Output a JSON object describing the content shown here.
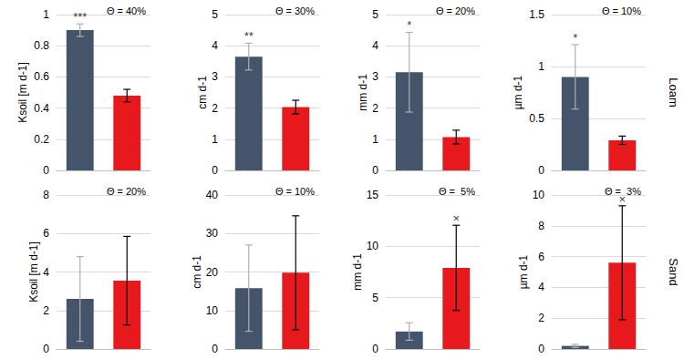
{
  "chart_data": [
    {
      "type": "bar",
      "title": "Θ = 40%",
      "ylabel": "Ksoil [m d-1]",
      "categories": [
        null,
        null
      ],
      "values": [
        0.9,
        0.48
      ],
      "errors": [
        0.04,
        0.04
      ],
      "colors": [
        "#44546a",
        "#e8191c"
      ],
      "annotations": [
        "***",
        null
      ],
      "ylim": [
        0,
        1
      ],
      "yticks": [
        0,
        0.2,
        0.4,
        0.6,
        0.8,
        1
      ],
      "grid": true,
      "tick_labels": "y"
    },
    {
      "type": "bar",
      "title": "Θ = 30%",
      "ylabel": "cm d-1",
      "categories": [
        null,
        null
      ],
      "values": [
        3.65,
        2.03
      ],
      "errors": [
        0.43,
        0.22
      ],
      "colors": [
        "#44546a",
        "#e8191c"
      ],
      "annotations": [
        "**",
        null
      ],
      "ylim": [
        0,
        5
      ],
      "yticks": [
        0,
        1,
        2,
        3,
        4,
        5
      ],
      "grid": true,
      "tick_labels": "y"
    },
    {
      "type": "bar",
      "title": "Θ = 20%",
      "ylabel": "mm d-1",
      "categories": [
        null,
        null
      ],
      "values": [
        3.15,
        1.07
      ],
      "errors": [
        1.28,
        0.22
      ],
      "colors": [
        "#44546a",
        "#e8191c"
      ],
      "annotations": [
        "*",
        null
      ],
      "ylim": [
        0,
        5
      ],
      "yticks": [
        0,
        1,
        2,
        3,
        4,
        5
      ],
      "grid": true,
      "tick_labels": "y"
    },
    {
      "type": "bar",
      "title": "Θ = 10%",
      "ylabel": "µm d-1",
      "side_label": "Loam",
      "categories": [
        null,
        null
      ],
      "values": [
        0.9,
        0.29
      ],
      "errors": [
        0.31,
        0.04
      ],
      "colors": [
        "#44546a",
        "#e8191c"
      ],
      "annotations": [
        "*",
        null
      ],
      "ylim": [
        0,
        1.5
      ],
      "yticks": [
        0,
        0.5,
        1,
        1.5
      ],
      "grid": true,
      "tick_labels": "y"
    },
    {
      "type": "bar",
      "title": "Θ = 20%",
      "ylabel": "Ksoil [m d-1]",
      "categories": [
        null,
        null
      ],
      "values": [
        2.6,
        3.55
      ],
      "errors": [
        2.2,
        2.3
      ],
      "colors": [
        "#44546a",
        "#e8191c"
      ],
      "annotations": [
        null,
        null
      ],
      "ylim": [
        0,
        8
      ],
      "yticks": [
        0,
        2,
        4,
        6,
        8
      ],
      "grid": true,
      "tick_labels": "y"
    },
    {
      "type": "bar",
      "title": "Θ = 10%",
      "ylabel": "cm d-1",
      "categories": [
        null,
        null
      ],
      "values": [
        15.8,
        19.8
      ],
      "errors": [
        11.2,
        14.8
      ],
      "colors": [
        "#44546a",
        "#e8191c"
      ],
      "annotations": [
        null,
        null
      ],
      "ylim": [
        0,
        40
      ],
      "yticks": [
        0,
        10,
        20,
        30,
        40
      ],
      "grid": true,
      "tick_labels": "y"
    },
    {
      "type": "bar",
      "title": "Θ =  5%",
      "ylabel": "mm d-1",
      "categories": [
        null,
        null
      ],
      "values": [
        1.7,
        7.9
      ],
      "errors": [
        0.85,
        4.15
      ],
      "colors": [
        "#44546a",
        "#e8191c"
      ],
      "annotations": [
        null,
        "×"
      ],
      "ylim": [
        0,
        15
      ],
      "yticks": [
        0,
        5,
        10,
        15
      ],
      "grid": true,
      "tick_labels": "y"
    },
    {
      "type": "bar",
      "title": "Θ =  3%",
      "ylabel": "µm d-1",
      "side_label": "Sand",
      "categories": [
        null,
        null
      ],
      "values": [
        0.2,
        5.6
      ],
      "errors": [
        0.1,
        3.7
      ],
      "colors": [
        "#44546a",
        "#e8191c"
      ],
      "annotations": [
        null,
        "×"
      ],
      "ylim": [
        0,
        10
      ],
      "yticks": [
        0,
        2,
        4,
        6,
        8,
        10
      ],
      "grid": true,
      "tick_labels": "y"
    }
  ]
}
